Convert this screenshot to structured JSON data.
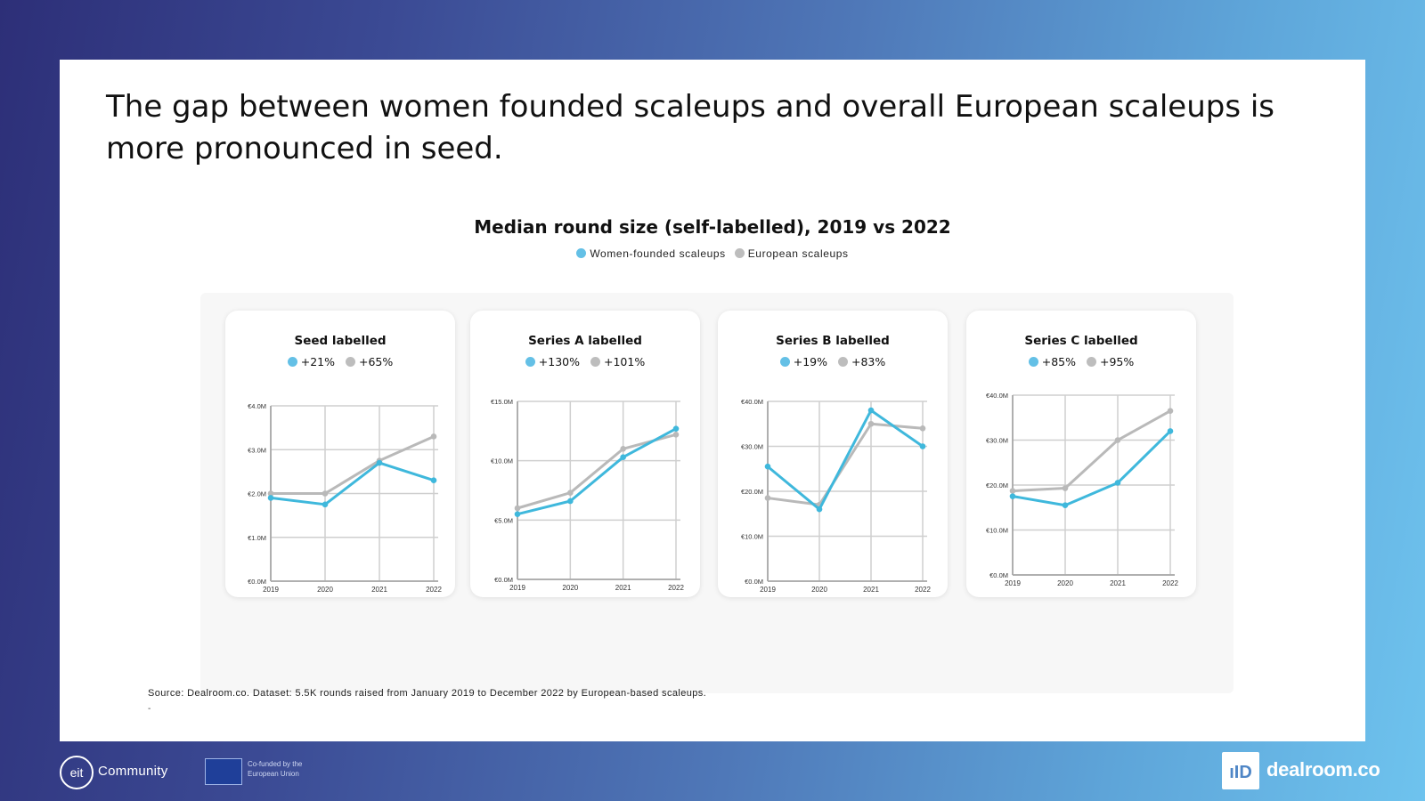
{
  "headline": "The gap between women founded scaleups and overall European scaleups is more pronounced in seed.",
  "main_title": "Median round size (self-labelled), 2019 vs 2022",
  "legend": [
    {
      "label": "Women-founded scaleups",
      "color": "#64c0e6"
    },
    {
      "label": "European scaleups",
      "color": "#bdbdbd"
    }
  ],
  "source": "Source: Dealroom.co. Dataset: 5.5K rounds raised from January 2019 to December 2022 by European-based scaleups.",
  "source_dash": "-",
  "footer": {
    "eit_mark": "eit",
    "eit_label": "Community",
    "eu_text_line1": "Co-funded by the",
    "eu_text_line2": "European Union",
    "dealroom_mark": "ıID",
    "dealroom_label": "dealroom.co"
  },
  "colors": {
    "women": "#3fb8dc",
    "europe": "#b9b9b9"
  },
  "chart_data": [
    {
      "type": "line",
      "title": "Seed labelled",
      "x": [
        "2019",
        "2020",
        "2021",
        "2022"
      ],
      "ylim": [
        0,
        4
      ],
      "yticks": [
        0,
        1,
        2,
        3,
        4
      ],
      "ytick_labels": [
        "€0.0M",
        "€1.0M",
        "€2.0M",
        "€3.0M",
        "€4.0M"
      ],
      "series": [
        {
          "name": "Women-founded scaleups",
          "change": "+21%",
          "values": [
            1.9,
            1.75,
            2.7,
            2.3
          ]
        },
        {
          "name": "European scaleups",
          "change": "+65%",
          "values": [
            2.0,
            2.0,
            2.75,
            3.3
          ]
        }
      ]
    },
    {
      "type": "line",
      "title": "Series A labelled",
      "x": [
        "2019",
        "2020",
        "2021",
        "2022"
      ],
      "ylim": [
        0,
        15
      ],
      "yticks": [
        0,
        5,
        10,
        15
      ],
      "ytick_labels": [
        "€0.0M",
        "€5.0M",
        "€10.0M",
        "€15.0M"
      ],
      "series": [
        {
          "name": "Women-founded scaleups",
          "change": "+130%",
          "values": [
            5.5,
            6.6,
            10.3,
            12.7
          ]
        },
        {
          "name": "European scaleups",
          "change": "+101%",
          "values": [
            6.0,
            7.3,
            11.0,
            12.2
          ]
        }
      ]
    },
    {
      "type": "line",
      "title": "Series B labelled",
      "x": [
        "2019",
        "2020",
        "2021",
        "2022"
      ],
      "ylim": [
        0,
        40
      ],
      "yticks": [
        0,
        10,
        20,
        30,
        40
      ],
      "ytick_labels": [
        "€0.0M",
        "€10.0M",
        "€20.0M",
        "€30.0M",
        "€40.0M"
      ],
      "series": [
        {
          "name": "Women-founded scaleups",
          "change": "+19%",
          "values": [
            25.5,
            16.0,
            38.0,
            30.0
          ]
        },
        {
          "name": "European scaleups",
          "change": "+83%",
          "values": [
            18.5,
            17.0,
            35.0,
            34.0
          ]
        }
      ]
    },
    {
      "type": "line",
      "title": "Series C labelled",
      "x": [
        "2019",
        "2020",
        "2021",
        "2022"
      ],
      "ylim": [
        0,
        40
      ],
      "yticks": [
        0,
        10,
        20,
        30,
        40
      ],
      "ytick_labels": [
        "€0.0M",
        "€10.0M",
        "€20.0M",
        "€30.0M",
        "€40.0M"
      ],
      "series": [
        {
          "name": "Women-founded scaleups",
          "change": "+85%",
          "values": [
            17.5,
            15.5,
            20.5,
            32.0
          ]
        },
        {
          "name": "European scaleups",
          "change": "+95%",
          "values": [
            18.7,
            19.3,
            30.0,
            36.5
          ]
        }
      ]
    }
  ]
}
